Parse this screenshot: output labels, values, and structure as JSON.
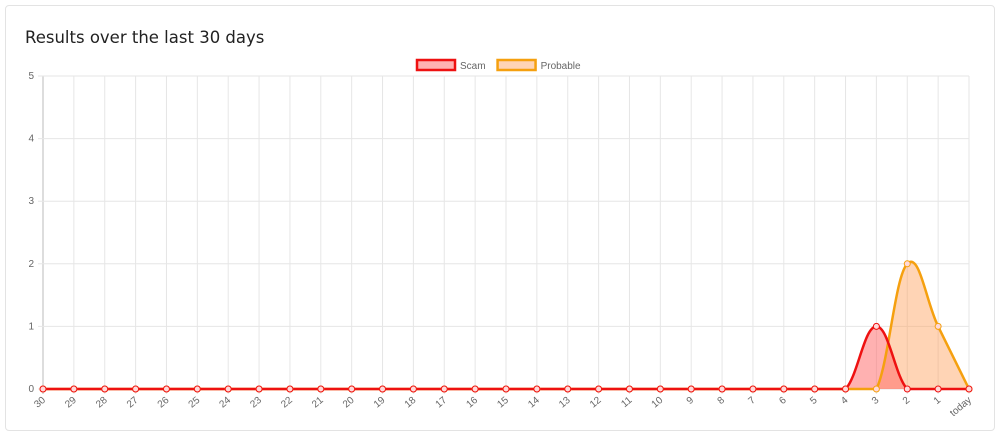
{
  "card": {
    "title": "Results over the last 30 days"
  },
  "chart_data": {
    "type": "line",
    "title": "",
    "xlabel": "",
    "ylabel": "",
    "categories": [
      "30",
      "29",
      "28",
      "27",
      "26",
      "25",
      "24",
      "23",
      "22",
      "21",
      "20",
      "19",
      "18",
      "17",
      "16",
      "15",
      "14",
      "13",
      "12",
      "11",
      "10",
      "9",
      "8",
      "7",
      "6",
      "5",
      "4",
      "3",
      "2",
      "1",
      "today"
    ],
    "ylim": [
      0,
      5
    ],
    "yticks": [
      "0",
      "1",
      "2",
      "3",
      "4",
      "5"
    ],
    "grid": true,
    "legend_position": "top",
    "smooth": true,
    "filled": true,
    "series": [
      {
        "name": "Scam",
        "color": "#ee1111",
        "fill": "rgba(255,99,99,0.5)",
        "values": [
          0,
          0,
          0,
          0,
          0,
          0,
          0,
          0,
          0,
          0,
          0,
          0,
          0,
          0,
          0,
          0,
          0,
          0,
          0,
          0,
          0,
          0,
          0,
          0,
          0,
          0,
          0,
          1,
          0,
          0,
          0
        ]
      },
      {
        "name": "Probable",
        "color": "#f5a00f",
        "fill": "rgba(255,160,90,0.45)",
        "values": [
          0,
          0,
          0,
          0,
          0,
          0,
          0,
          0,
          0,
          0,
          0,
          0,
          0,
          0,
          0,
          0,
          0,
          0,
          0,
          0,
          0,
          0,
          0,
          0,
          0,
          0,
          0,
          0,
          2,
          1,
          0
        ]
      }
    ]
  }
}
